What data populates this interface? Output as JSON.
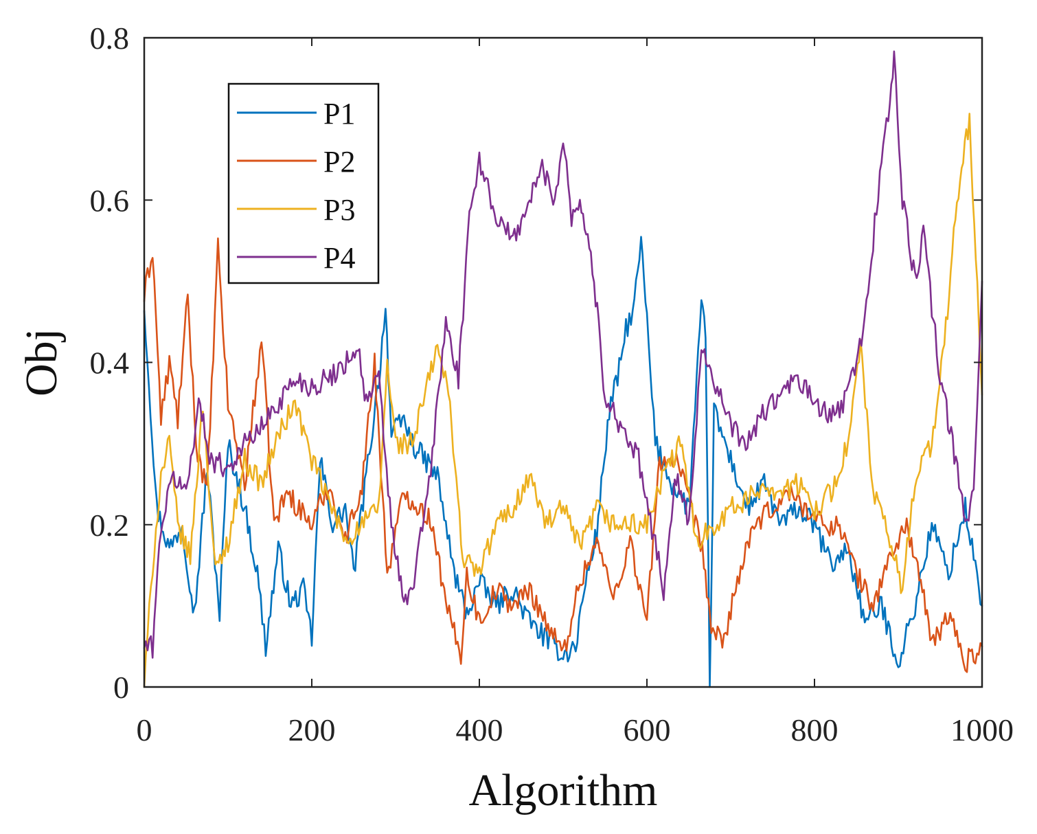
{
  "chart_data": {
    "type": "line",
    "title": "",
    "xlabel": "Algorithm",
    "ylabel": "Obj",
    "xlim": [
      0,
      1000
    ],
    "ylim": [
      0,
      0.8
    ],
    "x_ticks": [
      0,
      200,
      400,
      600,
      800,
      1000
    ],
    "y_ticks": [
      0,
      0.2,
      0.4,
      0.6,
      0.8
    ],
    "x_tick_labels": [
      "0",
      "200",
      "400",
      "600",
      "800",
      "1000"
    ],
    "y_tick_labels": [
      "0",
      "0.2",
      "0.4",
      "0.6",
      "0.8"
    ],
    "grid": false,
    "legend_position": "top-left",
    "series": [
      {
        "name": "P1",
        "color": "#0072BD",
        "points": [
          [
            0,
            0.47
          ],
          [
            15,
            0.22
          ],
          [
            30,
            0.17
          ],
          [
            45,
            0.2
          ],
          [
            60,
            0.09
          ],
          [
            75,
            0.27
          ],
          [
            90,
            0.09
          ],
          [
            100,
            0.3
          ],
          [
            120,
            0.22
          ],
          [
            135,
            0.14
          ],
          [
            145,
            0.05
          ],
          [
            160,
            0.17
          ],
          [
            175,
            0.1
          ],
          [
            190,
            0.12
          ],
          [
            200,
            0.06
          ],
          [
            210,
            0.28
          ],
          [
            225,
            0.2
          ],
          [
            240,
            0.22
          ],
          [
            250,
            0.14
          ],
          [
            265,
            0.26
          ],
          [
            280,
            0.38
          ],
          [
            288,
            0.47
          ],
          [
            295,
            0.31
          ],
          [
            310,
            0.33
          ],
          [
            320,
            0.3
          ],
          [
            335,
            0.28
          ],
          [
            350,
            0.26
          ],
          [
            370,
            0.14
          ],
          [
            385,
            0.09
          ],
          [
            400,
            0.13
          ],
          [
            420,
            0.1
          ],
          [
            440,
            0.12
          ],
          [
            460,
            0.08
          ],
          [
            480,
            0.06
          ],
          [
            500,
            0.04
          ],
          [
            515,
            0.05
          ],
          [
            525,
            0.12
          ],
          [
            540,
            0.19
          ],
          [
            555,
            0.34
          ],
          [
            565,
            0.38
          ],
          [
            575,
            0.44
          ],
          [
            585,
            0.47
          ],
          [
            593,
            0.55
          ],
          [
            600,
            0.45
          ],
          [
            610,
            0.3
          ],
          [
            630,
            0.25
          ],
          [
            650,
            0.22
          ],
          [
            665,
            0.47
          ],
          [
            670,
            0.43
          ],
          [
            675,
            0.0
          ],
          [
            680,
            0.34
          ],
          [
            700,
            0.28
          ],
          [
            720,
            0.22
          ],
          [
            740,
            0.25
          ],
          [
            760,
            0.2
          ],
          [
            780,
            0.22
          ],
          [
            800,
            0.2
          ],
          [
            820,
            0.15
          ],
          [
            840,
            0.17
          ],
          [
            860,
            0.08
          ],
          [
            880,
            0.1
          ],
          [
            900,
            0.03
          ],
          [
            920,
            0.1
          ],
          [
            940,
            0.2
          ],
          [
            960,
            0.14
          ],
          [
            980,
            0.22
          ],
          [
            1000,
            0.1
          ]
        ]
      },
      {
        "name": "P2",
        "color": "#D95319",
        "points": [
          [
            0,
            0.48
          ],
          [
            10,
            0.54
          ],
          [
            20,
            0.33
          ],
          [
            30,
            0.4
          ],
          [
            40,
            0.33
          ],
          [
            52,
            0.48
          ],
          [
            62,
            0.3
          ],
          [
            75,
            0.24
          ],
          [
            88,
            0.54
          ],
          [
            100,
            0.35
          ],
          [
            120,
            0.25
          ],
          [
            140,
            0.43
          ],
          [
            155,
            0.2
          ],
          [
            170,
            0.24
          ],
          [
            185,
            0.22
          ],
          [
            200,
            0.2
          ],
          [
            220,
            0.25
          ],
          [
            240,
            0.18
          ],
          [
            260,
            0.25
          ],
          [
            275,
            0.4
          ],
          [
            290,
            0.14
          ],
          [
            310,
            0.24
          ],
          [
            330,
            0.22
          ],
          [
            345,
            0.2
          ],
          [
            360,
            0.1
          ],
          [
            378,
            0.04
          ],
          [
            385,
            0.14
          ],
          [
            400,
            0.08
          ],
          [
            420,
            0.12
          ],
          [
            440,
            0.1
          ],
          [
            460,
            0.12
          ],
          [
            480,
            0.08
          ],
          [
            500,
            0.04
          ],
          [
            520,
            0.13
          ],
          [
            540,
            0.18
          ],
          [
            560,
            0.11
          ],
          [
            580,
            0.18
          ],
          [
            600,
            0.08
          ],
          [
            615,
            0.28
          ],
          [
            635,
            0.28
          ],
          [
            650,
            0.23
          ],
          [
            668,
            0.16
          ],
          [
            675,
            0.08
          ],
          [
            690,
            0.05
          ],
          [
            710,
            0.14
          ],
          [
            730,
            0.2
          ],
          [
            750,
            0.22
          ],
          [
            770,
            0.24
          ],
          [
            790,
            0.22
          ],
          [
            810,
            0.2
          ],
          [
            830,
            0.2
          ],
          [
            850,
            0.14
          ],
          [
            870,
            0.1
          ],
          [
            890,
            0.16
          ],
          [
            910,
            0.2
          ],
          [
            925,
            0.14
          ],
          [
            940,
            0.05
          ],
          [
            960,
            0.09
          ],
          [
            980,
            0.03
          ],
          [
            1000,
            0.05
          ]
        ]
      },
      {
        "name": "P3",
        "color": "#EDB120",
        "points": [
          [
            0,
            0.0
          ],
          [
            10,
            0.15
          ],
          [
            20,
            0.26
          ],
          [
            30,
            0.3
          ],
          [
            40,
            0.2
          ],
          [
            55,
            0.16
          ],
          [
            70,
            0.35
          ],
          [
            85,
            0.14
          ],
          [
            100,
            0.18
          ],
          [
            120,
            0.28
          ],
          [
            140,
            0.25
          ],
          [
            160,
            0.31
          ],
          [
            180,
            0.35
          ],
          [
            200,
            0.28
          ],
          [
            220,
            0.23
          ],
          [
            240,
            0.18
          ],
          [
            260,
            0.2
          ],
          [
            280,
            0.22
          ],
          [
            290,
            0.4
          ],
          [
            300,
            0.3
          ],
          [
            320,
            0.3
          ],
          [
            335,
            0.36
          ],
          [
            350,
            0.42
          ],
          [
            365,
            0.35
          ],
          [
            380,
            0.16
          ],
          [
            400,
            0.14
          ],
          [
            420,
            0.2
          ],
          [
            440,
            0.22
          ],
          [
            460,
            0.26
          ],
          [
            480,
            0.2
          ],
          [
            500,
            0.22
          ],
          [
            520,
            0.17
          ],
          [
            540,
            0.22
          ],
          [
            560,
            0.2
          ],
          [
            580,
            0.2
          ],
          [
            600,
            0.2
          ],
          [
            620,
            0.26
          ],
          [
            640,
            0.3
          ],
          [
            660,
            0.18
          ],
          [
            680,
            0.2
          ],
          [
            700,
            0.22
          ],
          [
            720,
            0.23
          ],
          [
            740,
            0.25
          ],
          [
            760,
            0.24
          ],
          [
            780,
            0.25
          ],
          [
            800,
            0.22
          ],
          [
            820,
            0.24
          ],
          [
            840,
            0.3
          ],
          [
            855,
            0.42
          ],
          [
            870,
            0.24
          ],
          [
            890,
            0.18
          ],
          [
            905,
            0.12
          ],
          [
            920,
            0.26
          ],
          [
            940,
            0.3
          ],
          [
            955,
            0.42
          ],
          [
            970,
            0.6
          ],
          [
            985,
            0.7
          ],
          [
            1000,
            0.36
          ]
        ]
      },
      {
        "name": "P4",
        "color": "#7E2F8E",
        "points": [
          [
            0,
            0.05
          ],
          [
            10,
            0.05
          ],
          [
            20,
            0.2
          ],
          [
            35,
            0.26
          ],
          [
            50,
            0.24
          ],
          [
            65,
            0.35
          ],
          [
            80,
            0.28
          ],
          [
            100,
            0.27
          ],
          [
            120,
            0.3
          ],
          [
            140,
            0.32
          ],
          [
            160,
            0.35
          ],
          [
            180,
            0.38
          ],
          [
            200,
            0.37
          ],
          [
            220,
            0.38
          ],
          [
            240,
            0.4
          ],
          [
            255,
            0.42
          ],
          [
            265,
            0.35
          ],
          [
            280,
            0.38
          ],
          [
            295,
            0.2
          ],
          [
            310,
            0.1
          ],
          [
            320,
            0.12
          ],
          [
            340,
            0.25
          ],
          [
            360,
            0.45
          ],
          [
            375,
            0.38
          ],
          [
            390,
            0.6
          ],
          [
            400,
            0.65
          ],
          [
            420,
            0.58
          ],
          [
            440,
            0.55
          ],
          [
            460,
            0.6
          ],
          [
            475,
            0.64
          ],
          [
            490,
            0.6
          ],
          [
            500,
            0.68
          ],
          [
            510,
            0.58
          ],
          [
            520,
            0.6
          ],
          [
            535,
            0.52
          ],
          [
            550,
            0.36
          ],
          [
            570,
            0.32
          ],
          [
            590,
            0.28
          ],
          [
            600,
            0.22
          ],
          [
            610,
            0.18
          ],
          [
            620,
            0.12
          ],
          [
            635,
            0.26
          ],
          [
            650,
            0.2
          ],
          [
            665,
            0.42
          ],
          [
            680,
            0.38
          ],
          [
            700,
            0.32
          ],
          [
            720,
            0.3
          ],
          [
            740,
            0.34
          ],
          [
            760,
            0.36
          ],
          [
            780,
            0.38
          ],
          [
            800,
            0.35
          ],
          [
            820,
            0.33
          ],
          [
            840,
            0.36
          ],
          [
            860,
            0.45
          ],
          [
            870,
            0.55
          ],
          [
            880,
            0.65
          ],
          [
            890,
            0.72
          ],
          [
            895,
            0.78
          ],
          [
            905,
            0.6
          ],
          [
            920,
            0.5
          ],
          [
            930,
            0.56
          ],
          [
            950,
            0.38
          ],
          [
            965,
            0.3
          ],
          [
            980,
            0.2
          ],
          [
            990,
            0.24
          ],
          [
            1000,
            0.5
          ]
        ]
      }
    ]
  }
}
